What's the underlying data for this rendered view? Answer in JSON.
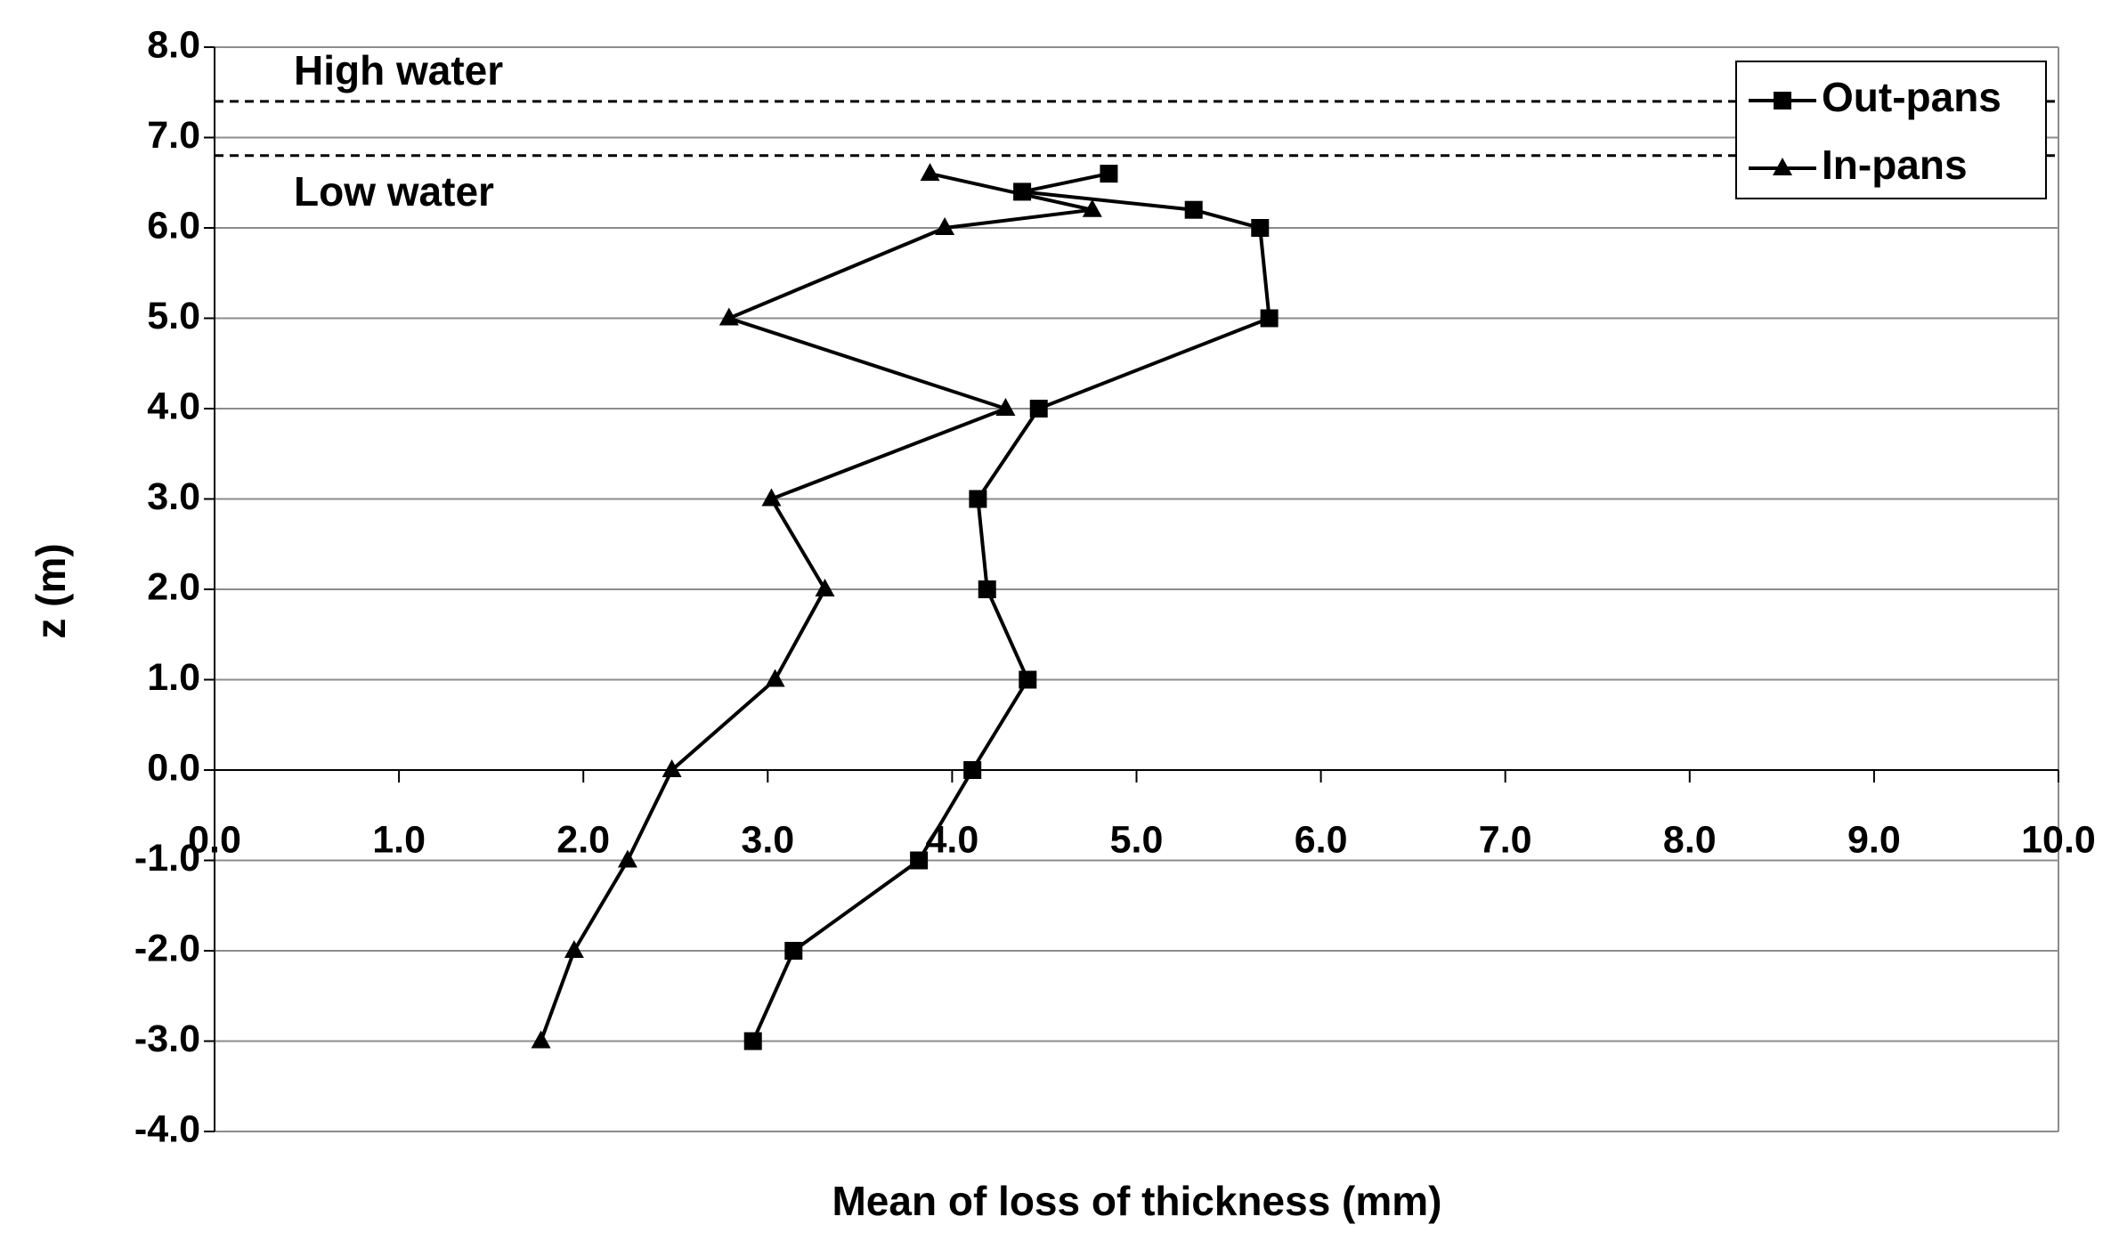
{
  "chart_data": {
    "type": "line",
    "xlabel": "Mean of loss of thickness (mm)",
    "ylabel": "z (m)",
    "xlim": [
      0,
      10
    ],
    "ylim": [
      -4,
      8
    ],
    "xticks": [
      {
        "value": 0,
        "label": "0.0"
      },
      {
        "value": 1,
        "label": "1.0"
      },
      {
        "value": 2,
        "label": "2.0"
      },
      {
        "value": 3,
        "label": "3.0"
      },
      {
        "value": 4,
        "label": "4.0"
      },
      {
        "value": 5,
        "label": "5.0"
      },
      {
        "value": 6,
        "label": "6.0"
      },
      {
        "value": 7,
        "label": "7.0"
      },
      {
        "value": 8,
        "label": "8.0"
      },
      {
        "value": 9,
        "label": "9.0"
      },
      {
        "value": 10,
        "label": "10.0"
      }
    ],
    "yticks": [
      {
        "value": -4,
        "label": "-4.0"
      },
      {
        "value": -3,
        "label": "-3.0"
      },
      {
        "value": -2,
        "label": "-2.0"
      },
      {
        "value": -1,
        "label": "-1.0"
      },
      {
        "value": 0,
        "label": "0.0"
      },
      {
        "value": 1,
        "label": "1.0"
      },
      {
        "value": 2,
        "label": "2.0"
      },
      {
        "value": 3,
        "label": "3.0"
      },
      {
        "value": 4,
        "label": "4.0"
      },
      {
        "value": 5,
        "label": "5.0"
      },
      {
        "value": 6,
        "label": "6.0"
      },
      {
        "value": 7,
        "label": "7.0"
      },
      {
        "value": 8,
        "label": "8.0"
      }
    ],
    "grid": true,
    "legend": "upper right",
    "annotations": [
      {
        "text": "High water",
        "y": 7.4
      },
      {
        "text": "Low water",
        "y": 6.8
      }
    ],
    "series": [
      {
        "name": "Out-pans",
        "color": "#000000",
        "marker": "square",
        "x": [
          4.85,
          4.38,
          5.31,
          5.67,
          5.72,
          4.47,
          4.14,
          4.19,
          4.41,
          4.11,
          3.82,
          3.14,
          2.92
        ],
        "values": [
          6.6,
          6.4,
          6.2,
          6.0,
          5.0,
          4.0,
          3.0,
          2.0,
          1.0,
          0.0,
          -1.0,
          -2.0,
          -3.0
        ]
      },
      {
        "name": "In-pans",
        "color": "#000000",
        "marker": "triangle",
        "x": [
          3.88,
          4.76,
          3.96,
          2.79,
          4.29,
          3.02,
          3.31,
          3.04,
          2.48,
          2.24,
          1.95,
          1.77
        ],
        "values": [
          6.6,
          6.2,
          6.0,
          5.0,
          4.0,
          3.0,
          2.0,
          1.0,
          0.0,
          -1.0,
          -2.0,
          -3.0
        ]
      }
    ]
  }
}
